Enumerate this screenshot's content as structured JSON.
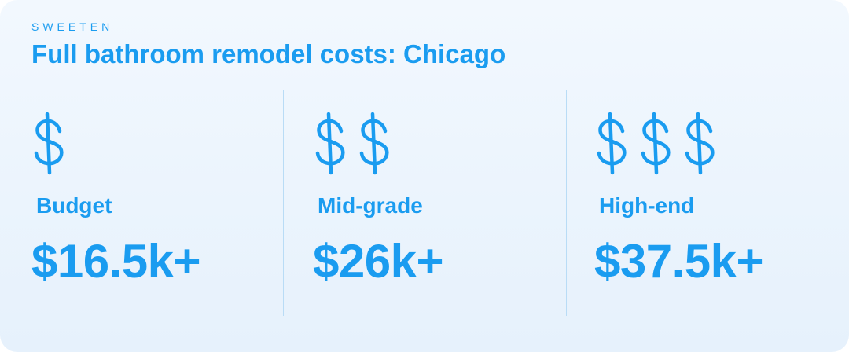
{
  "brand": "SWEETEN",
  "title": "Full bathroom remodel costs: Chicago",
  "accent_color": "#1a9cf0",
  "tiers": [
    {
      "label": "Budget",
      "price": "$16.5k+",
      "dollar_signs": 1,
      "icon": "dollar-sign-icon"
    },
    {
      "label": "Mid-grade",
      "price": "$26k+",
      "dollar_signs": 2,
      "icon": "dollar-sign-icon"
    },
    {
      "label": "High-end",
      "price": "$37.5k+",
      "dollar_signs": 3,
      "icon": "dollar-sign-icon"
    }
  ]
}
